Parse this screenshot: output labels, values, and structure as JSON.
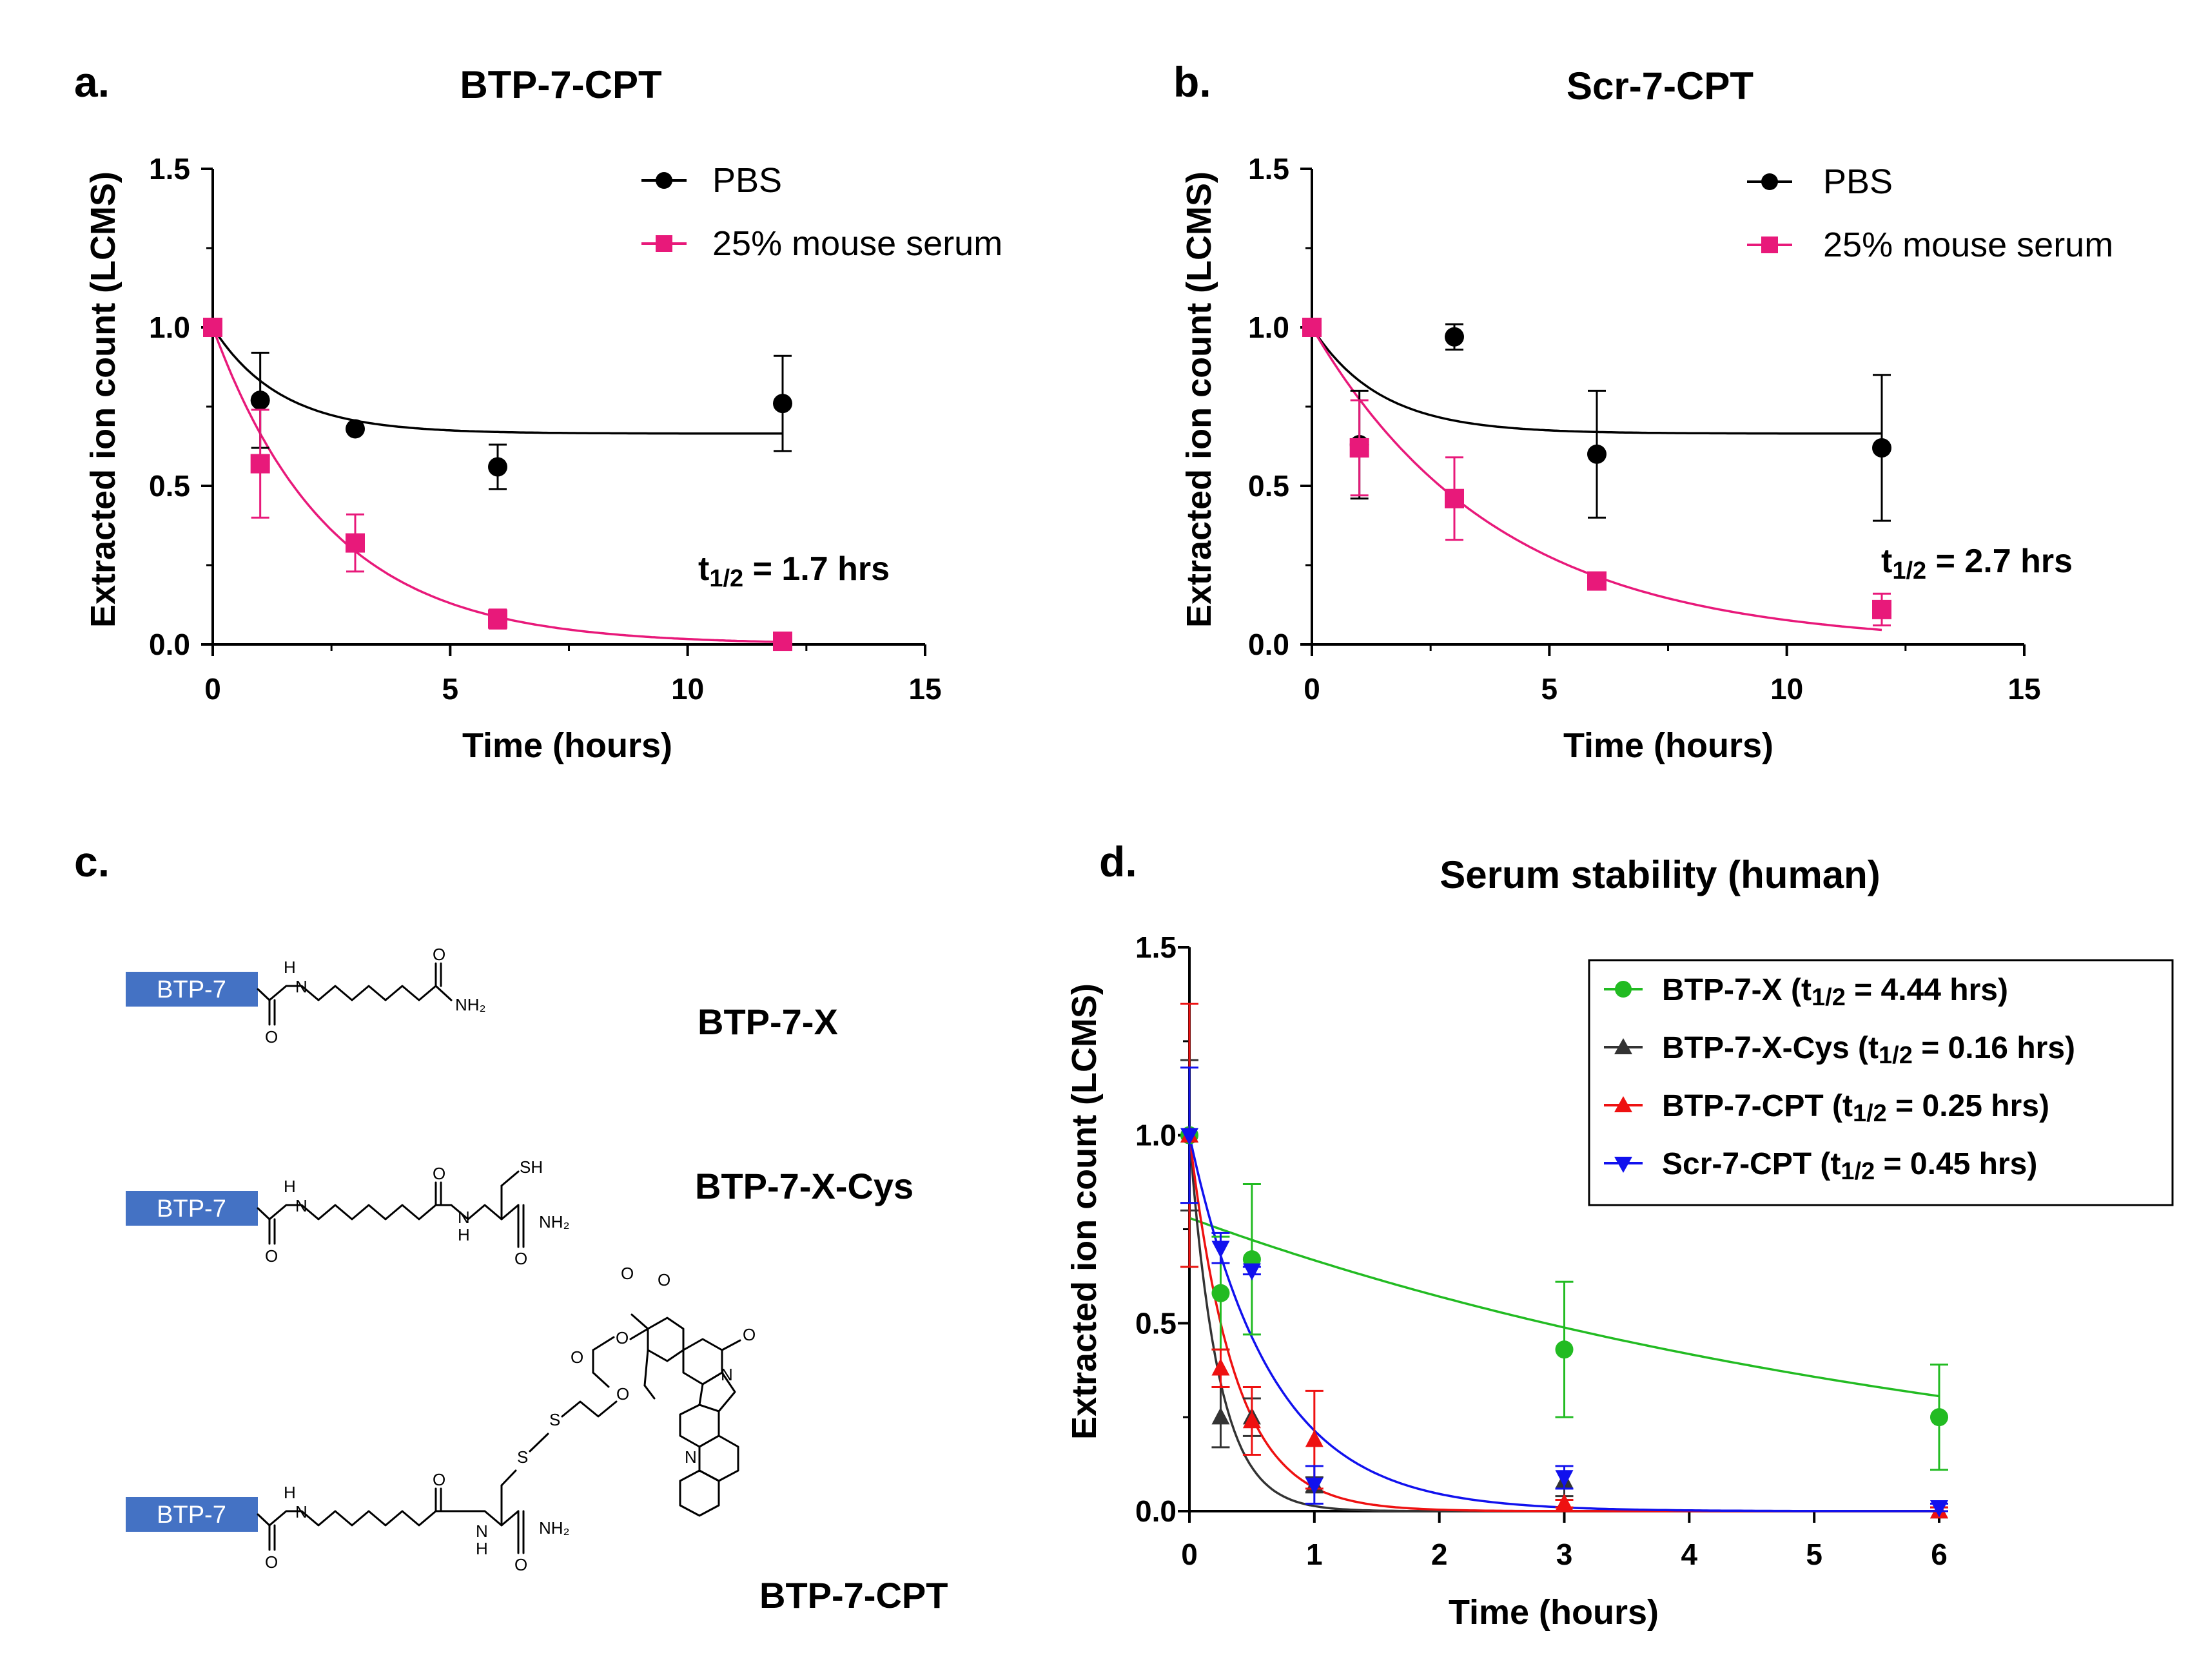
{
  "panels": {
    "a": {
      "letter": "a.",
      "title": "BTP-7-CPT",
      "ylabel": "Extracted ion count (LCMS)",
      "xlabel": "Time (hours)",
      "annotation_prefix": "t",
      "annotation_sub": "1/2",
      "annotation_suffix": " = 1.7 hrs"
    },
    "b": {
      "letter": "b.",
      "title": "Scr-7-CPT",
      "ylabel": "Extracted ion count (LCMS)",
      "xlabel": "Time (hours)",
      "annotation_prefix": "t",
      "annotation_sub": "1/2",
      "annotation_suffix": " = 2.7 hrs"
    },
    "c": {
      "letter": "c.",
      "block_label": "BTP-7",
      "compounds": [
        "BTP-7-X",
        "BTP-7-X-Cys",
        "BTP-7-CPT"
      ],
      "atoms": {
        "N": "N",
        "H": "H",
        "O": "O",
        "NH2": "NH₂",
        "SH": "SH",
        "S": "S"
      }
    },
    "d": {
      "letter": "d.",
      "title": "Serum stability (human)",
      "ylabel": "Extracted ion count (LCMS)",
      "xlabel": "Time (hours)"
    }
  },
  "colors": {
    "pbs": "#000000",
    "mouse_serum": "#e8197a",
    "btp7x": "#22bb22",
    "btp7xcys": "#333333",
    "btp7cpt": "#ee1111",
    "scr7cpt": "#1111ee",
    "btp_block": "#4472c4"
  },
  "chart_data": [
    {
      "panel": "a",
      "type": "scatter",
      "title": "BTP-7-CPT",
      "xlabel": "Time (hours)",
      "ylabel": "Extracted ion count (LCMS)",
      "xlim": [
        0,
        15
      ],
      "ylim": [
        0,
        1.5
      ],
      "xticks": [
        "0",
        "5",
        "10",
        "15"
      ],
      "yticks": [
        "0.0",
        "0.5",
        "1.0",
        "1.5"
      ],
      "legend_position": "top-right",
      "series": [
        {
          "name": "PBS",
          "marker": "circle",
          "x": [
            0,
            1,
            3,
            6,
            12
          ],
          "y": [
            1.0,
            0.77,
            0.68,
            0.56,
            0.76
          ],
          "err": [
            0.0,
            0.15,
            0.0,
            0.07,
            0.15
          ],
          "fit": {
            "plateau": 0.665,
            "k": 0.7
          }
        },
        {
          "name": "25% mouse serum",
          "marker": "square",
          "x": [
            0,
            1,
            3,
            6,
            12
          ],
          "y": [
            1.0,
            0.57,
            0.32,
            0.08,
            0.01
          ],
          "err": [
            0.0,
            0.17,
            0.09,
            0.03,
            0.01
          ],
          "fit": {
            "plateau": 0.0,
            "k": 0.408
          }
        }
      ]
    },
    {
      "panel": "b",
      "type": "scatter",
      "title": "Scr-7-CPT",
      "xlabel": "Time (hours)",
      "ylabel": "Extracted ion count (LCMS)",
      "xlim": [
        0,
        15
      ],
      "ylim": [
        0,
        1.5
      ],
      "xticks": [
        "0",
        "5",
        "10",
        "15"
      ],
      "yticks": [
        "0.0",
        "0.5",
        "1.0",
        "1.5"
      ],
      "legend_position": "top-right",
      "series": [
        {
          "name": "PBS",
          "marker": "circle",
          "x": [
            0,
            1,
            3,
            6,
            12
          ],
          "y": [
            1.0,
            0.63,
            0.97,
            0.6,
            0.62
          ],
          "err": [
            0.0,
            0.17,
            0.04,
            0.2,
            0.23
          ],
          "fit": {
            "plateau": 0.665,
            "k": 0.7
          }
        },
        {
          "name": "25% mouse serum",
          "marker": "square",
          "x": [
            0,
            1,
            3,
            6,
            12
          ],
          "y": [
            1.0,
            0.62,
            0.46,
            0.2,
            0.11
          ],
          "err": [
            0.0,
            0.15,
            0.13,
            0.01,
            0.05
          ],
          "fit": {
            "plateau": 0.0,
            "k": 0.257
          }
        }
      ]
    },
    {
      "panel": "d",
      "type": "scatter",
      "title": "Serum stability (human)",
      "xlabel": "Time (hours)",
      "ylabel": "Extracted ion count (LCMS)",
      "xlim": [
        0,
        6
      ],
      "ylim": [
        0,
        1.5
      ],
      "xticks": [
        "0",
        "1",
        "2",
        "3",
        "4",
        "5",
        "6"
      ],
      "yticks": [
        "0.0",
        "0.5",
        "1.0",
        "1.5"
      ],
      "legend_position": "top-right",
      "series": [
        {
          "name": "BTP-7-X",
          "legend_sub": "1/2",
          "legend_value": " = 4.44 hrs)",
          "marker": "circle",
          "x": [
            0,
            0.25,
            0.5,
            3,
            6
          ],
          "y": [
            1.0,
            0.58,
            0.67,
            0.43,
            0.25
          ],
          "err": [
            0.35,
            0.15,
            0.2,
            0.18,
            0.14
          ],
          "fit": {
            "a": 0.78,
            "k": 0.156
          }
        },
        {
          "name": "BTP-7-X-Cys",
          "legend_sub": "1/2",
          "legend_value": " = 0.16 hrs)",
          "marker": "triangle-up",
          "x": [
            0,
            0.25,
            0.5,
            1,
            3,
            6
          ],
          "y": [
            1.0,
            0.25,
            0.25,
            0.07,
            0.08,
            0.0
          ],
          "err": [
            0.2,
            0.08,
            0.05,
            0.02,
            0.04,
            0.01
          ],
          "fit": {
            "a": 1.0,
            "k": 4.3
          }
        },
        {
          "name": "BTP-7-CPT",
          "legend_sub": "1/2",
          "legend_value": " = 0.25 hrs)",
          "marker": "triangle-up",
          "x": [
            0,
            0.25,
            0.5,
            1,
            3,
            6
          ],
          "y": [
            1.0,
            0.38,
            0.24,
            0.19,
            0.02,
            0.0
          ],
          "err": [
            0.35,
            0.05,
            0.09,
            0.13,
            0.01,
            0.01
          ],
          "fit": {
            "a": 1.0,
            "k": 2.77
          }
        },
        {
          "name": "Scr-7-CPT",
          "legend_sub": "1/2",
          "legend_value": " = 0.45 hrs)",
          "marker": "triangle-down",
          "x": [
            0,
            0.25,
            0.5,
            1,
            3,
            6
          ],
          "y": [
            1.0,
            0.7,
            0.64,
            0.07,
            0.09,
            0.01
          ],
          "err": [
            0.18,
            0.04,
            0.01,
            0.05,
            0.03,
            0.01
          ],
          "fit": {
            "a": 1.0,
            "k": 1.54
          }
        }
      ]
    }
  ]
}
